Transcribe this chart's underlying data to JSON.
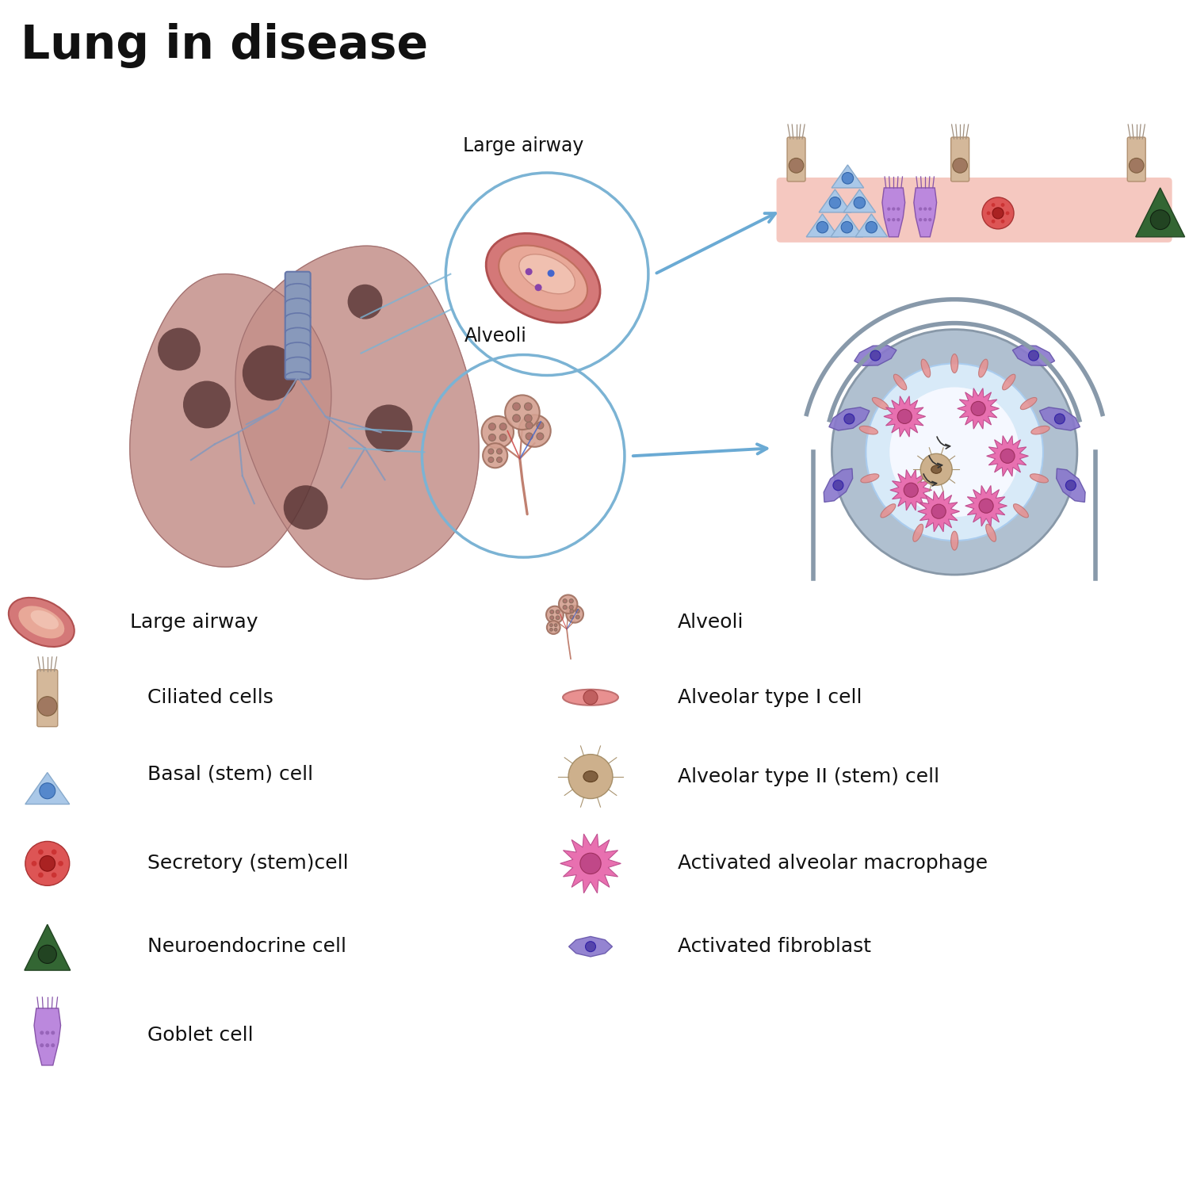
{
  "title": "Lung in disease",
  "title_fontsize": 42,
  "background_color": "#ffffff",
  "labels": {
    "large_airway": "Large airway",
    "alveoli": "Alveoli",
    "ciliated_cells": "Ciliated cells",
    "basal_stem_cell": "Basal (stem) cell",
    "secretory_stem_cell": "Secretory (stem)cell",
    "neuroendocrine_cell": "Neuroendocrine cell",
    "goblet_cell": "Goblet cell",
    "alveolar_type1": "Alveolar type I cell",
    "alveolar_type2": "Alveolar type II (stem) cell",
    "activated_macrophage": "Activated alveolar macrophage",
    "activated_fibroblast": "Activated fibroblast"
  },
  "colors": {
    "lung_body": "#c4908a",
    "lung_edge": "#a07070",
    "lung_dark": "#4a2828",
    "trachea_fill": "#8899bb",
    "trachea_edge": "#6677aa",
    "circle_stroke": "#7bb3d4",
    "arrow_color": "#6aaad4",
    "basal_fill": "#aac8e8",
    "basal_nuc": "#5588cc",
    "secretory_fill": "#dd5555",
    "secretory_nuc": "#aa2222",
    "neuro_fill": "#336633",
    "neuro_nuc": "#224422",
    "goblet_fill": "#bb88dd",
    "goblet_edge": "#8855aa",
    "ciliated_fill": "#d4b89a",
    "ciliated_nuc": "#a07860",
    "alv1_fill": "#e89090",
    "alv1_edge": "#c07070",
    "alv2_fill": "#c8a880",
    "alv2_edge": "#a08860",
    "macrophage_fill": "#e870b0",
    "macrophage_nuc": "#c04888",
    "fibroblast_fill": "#8877cc",
    "fibroblast_nuc": "#5544aa",
    "epithelium_bg": "#f5c8c0",
    "alveolus_outer": "#a8b8c8",
    "alveolus_inner": "#ddeeff",
    "airway_outer": "#d47878",
    "airway_mid": "#e8a898",
    "airway_lumen": "#f0c0b0"
  }
}
